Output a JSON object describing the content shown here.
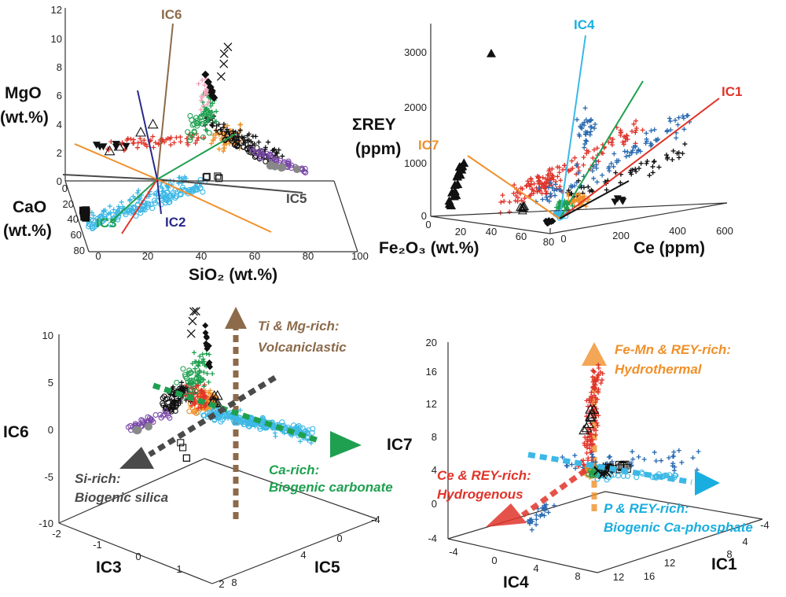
{
  "chart_data": [
    {
      "type": "scatter",
      "panel": "top-left",
      "axes": {
        "x": {
          "label": "SiO₂ (wt.%)",
          "range": [
            0,
            100
          ],
          "ticks": [
            "0",
            "20",
            "40",
            "60",
            "80",
            "100"
          ]
        },
        "y": {
          "label": "CaO (wt.%)",
          "label_lines": [
            "CaO",
            "(wt.%)"
          ],
          "range": [
            0,
            80
          ],
          "ticks": [
            "0",
            "20",
            "40",
            "60",
            "80"
          ]
        },
        "z": {
          "label": "MgO (wt.%)",
          "label_lines": [
            "MgO",
            "(wt.%)"
          ],
          "range": [
            0,
            12
          ],
          "ticks": [
            "0",
            "2",
            "4",
            "6",
            "8",
            "10",
            "12"
          ]
        }
      },
      "ic_labels": [
        "IC6",
        "IC3",
        "IC2",
        "IC5"
      ]
    },
    {
      "type": "scatter",
      "panel": "top-right",
      "axes": {
        "x": {
          "label": "Ce (ppm)",
          "range": [
            0,
            600
          ],
          "ticks": [
            "0",
            "200",
            "400",
            "600"
          ]
        },
        "y": {
          "label": "Fe₂O₃ (wt.%)",
          "range": [
            0,
            80
          ],
          "ticks": [
            "0",
            "20",
            "40",
            "60",
            "80"
          ]
        },
        "z": {
          "label": "ΣREY (ppm)",
          "label_lines": [
            "ΣREY",
            "(ppm)"
          ],
          "range": [
            0,
            3000
          ],
          "ticks": [
            "0",
            "1000",
            "2000",
            "3000"
          ]
        }
      },
      "ic_labels": [
        "IC4",
        "IC1",
        "IC7"
      ]
    },
    {
      "type": "scatter",
      "panel": "bottom-left",
      "axes": {
        "x": {
          "label": "IC3",
          "range": [
            -2,
            2
          ],
          "ticks": [
            "-2",
            "-1",
            "0",
            "1",
            "2"
          ]
        },
        "y": {
          "label": "IC5",
          "range": [
            -4,
            8
          ],
          "ticks": [
            "-4",
            "0",
            "4",
            "8"
          ]
        },
        "z": {
          "label": "IC6",
          "range": [
            -10,
            10
          ],
          "ticks": [
            "-10",
            "-5",
            "0",
            "5",
            "10"
          ]
        }
      },
      "annotations": [
        {
          "lines": [
            "Ti & Mg-rich:",
            "Volcaniclastic"
          ],
          "color": "#8c6a4a"
        },
        {
          "lines": [
            "Ca-rich:",
            "Biogenic carbonate"
          ],
          "color": "#1fa050"
        },
        {
          "lines": [
            "Si-rich:",
            "Biogenic silica"
          ],
          "color": "#4a4a4a"
        }
      ]
    },
    {
      "type": "scatter",
      "panel": "bottom-right",
      "axes": {
        "x": {
          "label": "IC4",
          "range": [
            -4,
            12
          ],
          "ticks": [
            "-4",
            "0",
            "4",
            "8",
            "12"
          ]
        },
        "y": {
          "label": "IC1",
          "range": [
            -4,
            16
          ],
          "ticks": [
            "-4",
            "4",
            "8",
            "12",
            "16"
          ]
        },
        "z": {
          "label": "IC7",
          "range": [
            -4,
            20
          ],
          "ticks": [
            "-4",
            "0",
            "4",
            "8",
            "12",
            "16",
            "20"
          ]
        }
      },
      "annotations": [
        {
          "lines": [
            "Fe-Mn & REY-rich:",
            "Hydrothermal"
          ],
          "color": "#f0902a"
        },
        {
          "lines": [
            "Ce & REY-rich:",
            "Hydrogenous"
          ],
          "color": "#e0342a"
        },
        {
          "lines": [
            "P & REY-rich:",
            "Biogenic Ca-phosphate"
          ],
          "color": "#19aee0"
        }
      ]
    }
  ],
  "colors": {
    "red": "#e0342a",
    "green": "#1fa050",
    "orange": "#f0902a",
    "cyan": "#3cb8e6",
    "blue": "#2a6ab0",
    "purple": "#7a48a8",
    "black": "#111111",
    "gray": "#888888",
    "pink": "#f0a0b8",
    "brown": "#8c6a4a",
    "navy": "#2a2a8a",
    "darkgray": "#4a4a4a"
  }
}
